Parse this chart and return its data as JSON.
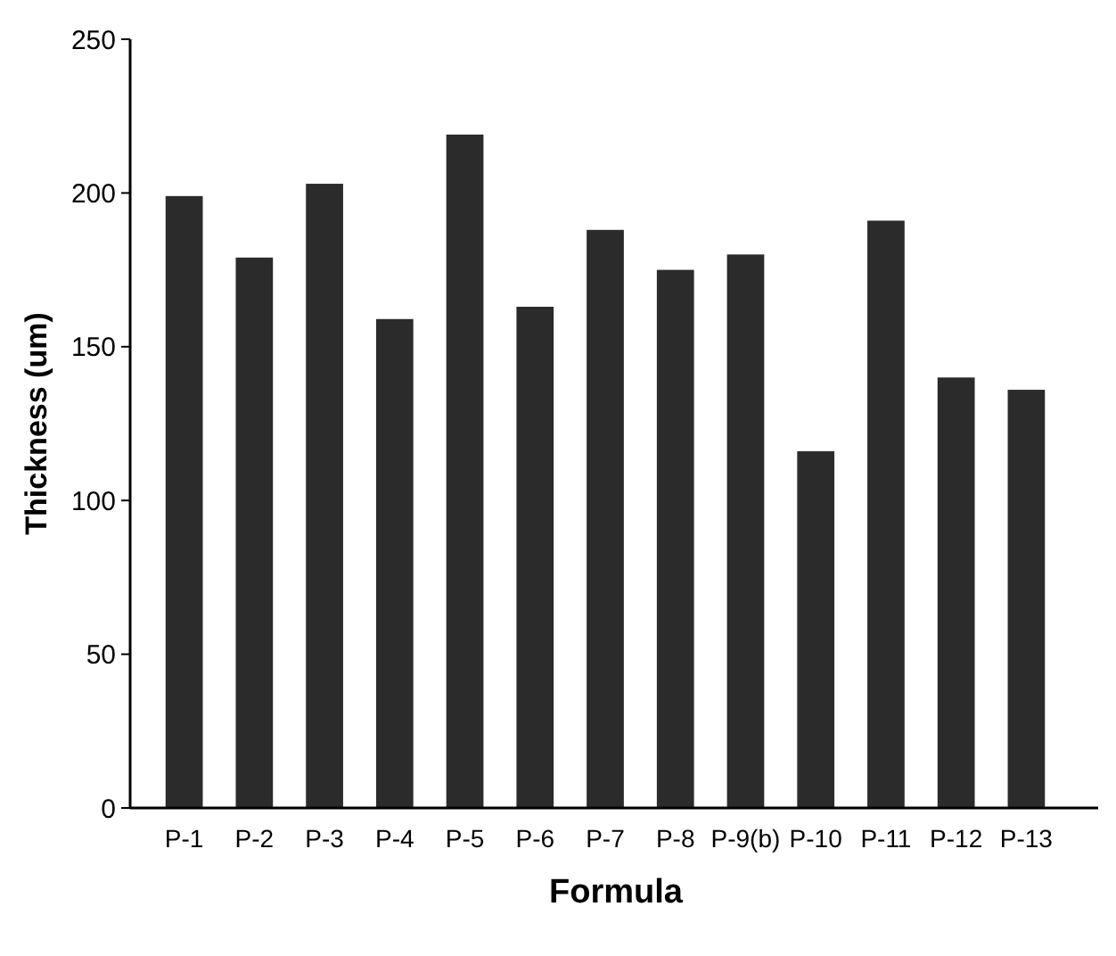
{
  "chart_data": {
    "type": "bar",
    "xlabel": "Formula",
    "ylabel": "Thickness (um)",
    "categories": [
      "P-1",
      "P-2",
      "P-3",
      "P-4",
      "P-5",
      "P-6",
      "P-7",
      "P-8",
      "P-9(b)",
      "P-10",
      "P-11",
      "P-12",
      "P-13"
    ],
    "values": [
      199,
      179,
      203,
      159,
      219,
      163,
      188,
      175,
      180,
      116,
      191,
      140,
      136
    ],
    "color": "#2b2b2b",
    "ylim": [
      0,
      250
    ],
    "yticks": [
      0,
      50,
      100,
      150,
      200,
      250
    ],
    "grid": false
  }
}
